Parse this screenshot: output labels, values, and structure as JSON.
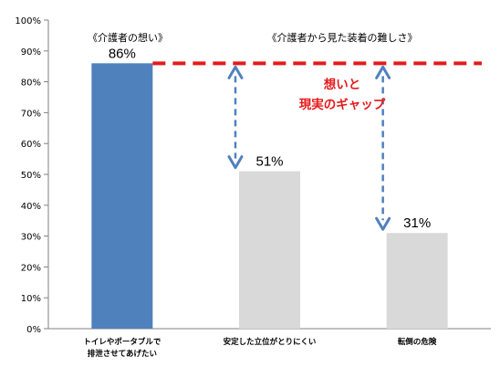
{
  "chart_data": {
    "type": "bar",
    "categories": [
      [
        "トイレやポータブルで",
        "排泄させてあげたい"
      ],
      [
        "安定した立位がとりにくい"
      ],
      [
        "転倒の危険"
      ]
    ],
    "values": [
      86,
      51,
      31
    ],
    "value_labels": [
      "86%",
      "51%",
      "31%"
    ],
    "bar_colors": [
      "#4f81bd",
      "#d9d9d9",
      "#d9d9d9"
    ],
    "ylim": [
      0,
      100
    ],
    "yticks": [
      0,
      10,
      20,
      30,
      40,
      50,
      60,
      70,
      80,
      90,
      100
    ],
    "ytick_labels": [
      "0%",
      "10%",
      "20%",
      "30%",
      "40%",
      "50%",
      "60%",
      "70%",
      "80%",
      "90%",
      "100%"
    ],
    "grid": false,
    "reference_line": {
      "value": 86,
      "color": "#e41a1c",
      "style": "dashed"
    },
    "arrow_color": "#4f81bd",
    "annotations": {
      "left_title": "《介護者の想い》",
      "right_title": "《介護者から見た装着の難しさ》",
      "gap_label": [
        "想いと",
        "現実のギャップ"
      ]
    }
  }
}
